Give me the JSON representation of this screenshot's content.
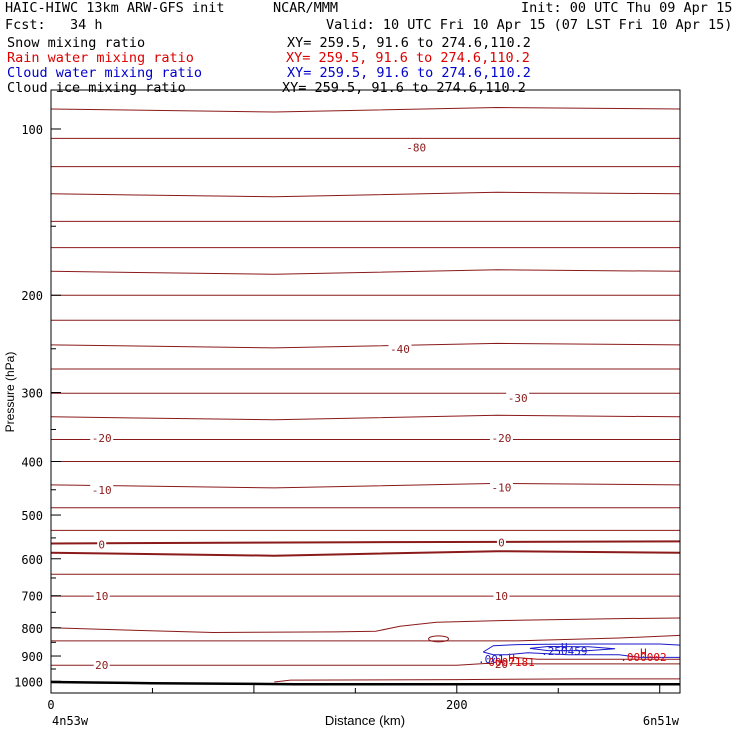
{
  "header": {
    "title": "HAIC-HIWC 13km ARW-GFS init",
    "center": "NCAR/MMM",
    "init": "Init: 00 UTC Thu 09 Apr 15",
    "fcst": "Fcst:   34 h",
    "valid": "Valid: 10 UTC Fri 10 Apr 15 (07 LST Fri 10 Apr 15)"
  },
  "fields": [
    {
      "name": "Snow mixing ratio",
      "xy": "XY= 259.5, 91.6 to 274.6,110.2",
      "color": "#000000"
    },
    {
      "name": "Rain water mixing ratio",
      "xy": "XY= 259.5, 91.6 to 274.6,110.2",
      "color": "#dd0000"
    },
    {
      "name": "Cloud water mixing ratio",
      "xy": "XY= 259.5, 91.6 to 274.6,110.2",
      "color": "#0000cc"
    },
    {
      "name": "Cloud ice mixing ratio",
      "xy": "XY= 259.5, 91.6 to 274.6,110.2",
      "color": "#000000"
    }
  ],
  "colors": {
    "temperature": "#8b1a1a",
    "rain": "#dd0000",
    "cloud_water": "#1a1acc",
    "terrain": "#000000"
  },
  "chart_data": {
    "type": "contour",
    "ylabel": "Pressure (hPa)",
    "xlabel": "Distance (km)",
    "y_scale": "log",
    "ylim": [
      1050,
      85
    ],
    "xlim": [
      0,
      310
    ],
    "y_ticks": [
      100,
      200,
      300,
      400,
      500,
      600,
      700,
      800,
      900,
      1000
    ],
    "x_ticks": [
      0,
      200
    ],
    "x_end_labels": {
      "left": "4n53w",
      "right": "6n51w"
    },
    "temperature_labels": [
      {
        "text": "-80",
        "x": 180,
        "p": 108
      },
      {
        "text": "-40",
        "x": 172,
        "p": 250
      },
      {
        "text": "-30",
        "x": 230,
        "p": 307
      },
      {
        "text": "-20",
        "x": 25,
        "p": 363
      },
      {
        "text": "-20",
        "x": 222,
        "p": 363
      },
      {
        "text": "-10",
        "x": 25,
        "p": 450
      },
      {
        "text": "-10",
        "x": 222,
        "p": 446
      },
      {
        "text": "0",
        "x": 25,
        "p": 565
      },
      {
        "text": "0",
        "x": 222,
        "p": 561
      },
      {
        "text": "10",
        "x": 25,
        "p": 701
      },
      {
        "text": "10",
        "x": 222,
        "p": 701
      },
      {
        "text": "20",
        "x": 25,
        "p": 935
      },
      {
        "text": "20",
        "x": 222,
        "p": 930
      }
    ],
    "extrema_labels": [
      {
        "text": "H",
        "x": 253,
        "p": 866,
        "field": "cloud_water"
      },
      {
        "text": ".250459",
        "x": 253,
        "p": 882,
        "field": "cloud_water"
      },
      {
        "text": ".001",
        "x": 217,
        "p": 912,
        "field": "cloud_water"
      },
      {
        "text": "H",
        "x": 227,
        "p": 906,
        "field": "rain"
      },
      {
        "text": "0007181",
        "x": 227,
        "p": 922,
        "field": "rain"
      },
      {
        "text": "H",
        "x": 292,
        "p": 887,
        "field": "rain"
      },
      {
        "text": ".000002",
        "x": 292,
        "p": 904,
        "field": "rain"
      }
    ]
  }
}
